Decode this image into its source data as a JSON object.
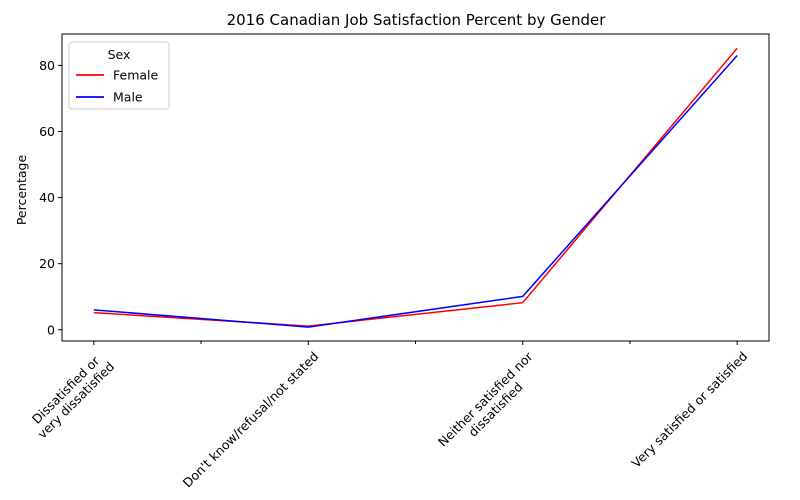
{
  "chart_data": {
    "type": "line",
    "title": "2016 Canadian Job Satisfaction Percent by Gender",
    "xlabel": "",
    "ylabel": "Percentage",
    "categories": [
      [
        "Dissatisfied or",
        "very dissatisfied"
      ],
      [
        "Don't know/refusal/not stated"
      ],
      [
        "Neither satisfied nor",
        "dissatisfied"
      ],
      [
        "Very satisfied or satisfied"
      ]
    ],
    "ylim": [
      -3.4,
      89.5
    ],
    "yticks": [
      0,
      20,
      40,
      60,
      80
    ],
    "series": [
      {
        "name": "Female",
        "color": "#ff0000",
        "values": [
          5.2,
          1.1,
          8.2,
          85.2
        ]
      },
      {
        "name": "Male",
        "color": "#0000ff",
        "values": [
          6.0,
          0.8,
          10.1,
          83.0
        ]
      }
    ],
    "legend": {
      "title": "Sex",
      "position": "top-left"
    },
    "grid": false
  }
}
